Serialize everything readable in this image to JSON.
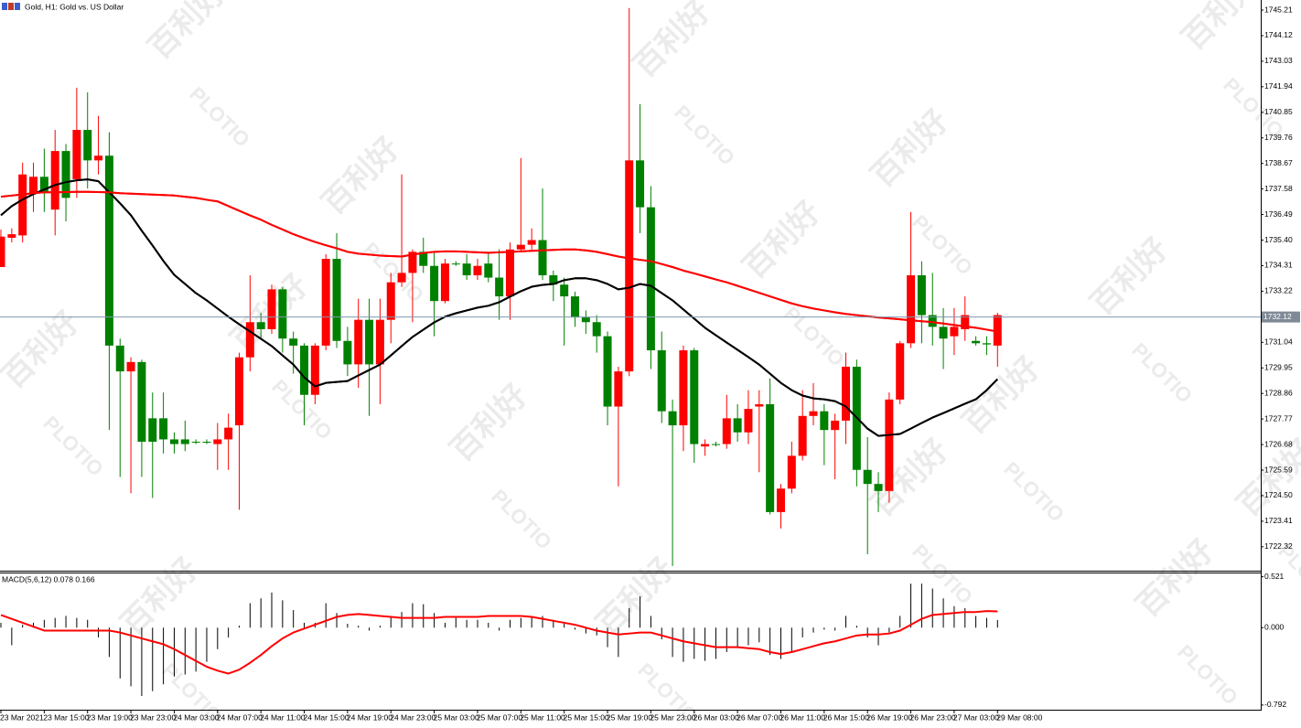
{
  "chart_data": [
    {
      "type": "candlestick",
      "title": "Gold, H1:  Gold vs. US Dollar",
      "watermark": {
        "brand": "PLOTIO",
        "text": "百利好"
      },
      "up_color": "#ff0000",
      "down_color": "#008000",
      "categories": [
        "23 Mar 2021",
        null,
        null,
        null,
        "23 Mar 15:00",
        null,
        null,
        null,
        "23 Mar 19:00",
        null,
        null,
        null,
        "23 Mar 23:00",
        null,
        null,
        null,
        "24 Mar 03:00",
        null,
        null,
        null,
        "24 Mar 07:00",
        null,
        null,
        null,
        "24 Mar 11:00",
        null,
        null,
        null,
        "24 Mar 15:00",
        null,
        null,
        null,
        "24 Mar 19:00",
        null,
        null,
        null,
        "24 Mar 23:00",
        null,
        null,
        null,
        "25 Mar 03:00",
        null,
        null,
        null,
        "25 Mar 07:00",
        null,
        null,
        null,
        "25 Mar 11:00",
        null,
        null,
        null,
        "25 Mar 15:00",
        null,
        null,
        null,
        "25 Mar 19:00",
        null,
        null,
        null,
        "25 Mar 23:00",
        null,
        null,
        null,
        "26 Mar 03:00",
        null,
        null,
        null,
        "26 Mar 07:00",
        null,
        null,
        null,
        "26 Mar 11:00",
        null,
        null,
        null,
        "26 Mar 15:00",
        null,
        null,
        null,
        "26 Mar 19:00",
        null,
        null,
        null,
        "26 Mar 23:00",
        null,
        null,
        null,
        "27 Mar 03:00",
        null,
        null,
        null,
        "29 Mar 08:00"
      ],
      "open": [
        1734.25,
        1735.5,
        1735.6,
        1737.4,
        1738.1,
        1736.7,
        1739.2,
        1738.0,
        1740.1,
        1738.8,
        1739.0,
        1730.9,
        1729.8,
        1730.2,
        1727.8,
        1727.8,
        1726.9,
        1726.9,
        1726.8,
        1726.8,
        1726.7,
        1726.9,
        1727.5,
        1730.4,
        1731.9,
        1731.6,
        1733.3,
        1731.2,
        1730.9,
        1728.8,
        1730.9,
        1734.6,
        1731.1,
        1730.1,
        1732.0,
        1730.1,
        1732.0,
        1733.6,
        1734.0,
        1734.9,
        1734.3,
        1732.8,
        1734.4,
        1734.4,
        1733.9,
        1734.4,
        1733.8,
        1733.0,
        1735.0,
        1735.2,
        1735.4,
        1733.9,
        1733.5,
        1733.0,
        1732.1,
        1731.9,
        1731.3,
        1728.3,
        1729.8,
        1738.8,
        1736.8,
        1730.7,
        1728.1,
        1727.5,
        1730.7,
        1726.6,
        1726.7,
        1726.7,
        1727.8,
        1727.2,
        1728.3,
        1728.4,
        1723.8,
        1724.8,
        1726.2,
        1727.9,
        1728.1,
        1727.3,
        1727.7,
        1730.0,
        1725.6,
        1725.0,
        1724.7,
        1728.6,
        1731.0,
        1733.9,
        1732.2,
        1731.7,
        1731.3,
        1731.6,
        1731.1,
        1731.0,
        1730.9
      ],
      "high": [
        1735.85,
        1735.9,
        1738.7,
        1738.7,
        1739.3,
        1740.1,
        1739.5,
        1741.9,
        1741.7,
        1740.7,
        1740.0,
        1731.2,
        1730.4,
        1730.3,
        1728.9,
        1728.9,
        1727.2,
        1727.7,
        1726.9,
        1726.9,
        1727.6,
        1728.0,
        1730.6,
        1733.9,
        1732.3,
        1733.5,
        1733.4,
        1731.5,
        1731.0,
        1731.0,
        1734.8,
        1735.7,
        1731.7,
        1732.9,
        1732.9,
        1732.9,
        1734.0,
        1738.2,
        1735.0,
        1735.5,
        1734.9,
        1734.6,
        1734.5,
        1734.8,
        1734.6,
        1734.9,
        1735.0,
        1735.3,
        1738.9,
        1735.9,
        1737.6,
        1734.1,
        1733.8,
        1733.2,
        1732.4,
        1732.2,
        1731.5,
        1730.0,
        1745.3,
        1741.2,
        1737.7,
        1731.5,
        1728.6,
        1730.9,
        1730.8,
        1726.9,
        1726.8,
        1728.8,
        1728.4,
        1729.0,
        1729.0,
        1729.5,
        1725.0,
        1726.8,
        1729.0,
        1729.3,
        1728.4,
        1728.0,
        1730.6,
        1730.3,
        1727.0,
        1725.5,
        1728.9,
        1731.1,
        1736.6,
        1734.5,
        1734.0,
        1732.5,
        1732.5,
        1733.0,
        1731.3,
        1731.3,
        1732.3
      ],
      "low": [
        1734.25,
        1735.3,
        1735.3,
        1736.6,
        1736.6,
        1735.6,
        1736.2,
        1737.2,
        1737.6,
        1738.2,
        1727.3,
        1725.3,
        1724.6,
        1725.3,
        1724.4,
        1726.3,
        1726.3,
        1726.4,
        1726.7,
        1726.7,
        1725.6,
        1725.6,
        1723.9,
        1729.8,
        1731.2,
        1731.4,
        1730.6,
        1729.7,
        1727.5,
        1728.4,
        1730.7,
        1730.8,
        1729.6,
        1729.1,
        1727.9,
        1728.4,
        1731.0,
        1733.4,
        1731.9,
        1734.0,
        1731.3,
        1732.7,
        1734.3,
        1733.7,
        1733.7,
        1733.6,
        1732.0,
        1732.0,
        1734.9,
        1735.0,
        1733.7,
        1732.8,
        1730.9,
        1731.7,
        1731.4,
        1730.6,
        1727.5,
        1724.9,
        1729.6,
        1735.7,
        1729.9,
        1727.6,
        1721.5,
        1726.4,
        1725.9,
        1726.2,
        1726.6,
        1726.5,
        1726.8,
        1726.7,
        1725.5,
        1723.7,
        1723.1,
        1724.6,
        1726.0,
        1727.5,
        1725.8,
        1725.2,
        1726.7,
        1724.9,
        1722.0,
        1723.8,
        1724.2,
        1728.4,
        1730.8,
        1731.0,
        1730.9,
        1729.9,
        1730.5,
        1731.1,
        1730.9,
        1730.5,
        1730.0
      ],
      "close": [
        1735.55,
        1735.65,
        1738.2,
        1738.1,
        1737.4,
        1739.2,
        1737.2,
        1740.1,
        1738.8,
        1739.0,
        1730.9,
        1729.8,
        1730.2,
        1726.8,
        1726.8,
        1726.9,
        1726.7,
        1726.7,
        1726.8,
        1726.8,
        1726.9,
        1727.4,
        1730.4,
        1731.9,
        1731.6,
        1733.3,
        1731.2,
        1730.9,
        1728.8,
        1730.9,
        1734.6,
        1731.1,
        1730.1,
        1732.0,
        1730.1,
        1732.0,
        1733.6,
        1734.0,
        1734.9,
        1734.3,
        1732.8,
        1734.4,
        1734.4,
        1733.9,
        1734.3,
        1733.8,
        1733.0,
        1735.0,
        1735.2,
        1735.4,
        1733.9,
        1733.5,
        1733.0,
        1732.1,
        1731.9,
        1731.3,
        1728.3,
        1729.8,
        1738.8,
        1736.8,
        1730.7,
        1728.1,
        1727.5,
        1730.7,
        1726.7,
        1726.7,
        1726.7,
        1727.8,
        1727.2,
        1728.2,
        1728.4,
        1723.8,
        1724.8,
        1726.2,
        1727.9,
        1728.1,
        1727.3,
        1727.7,
        1730.0,
        1725.6,
        1725.0,
        1724.7,
        1728.6,
        1731.0,
        1733.9,
        1732.2,
        1731.7,
        1731.2,
        1731.7,
        1732.2,
        1731.0,
        1730.95,
        1732.2
      ],
      "series": [
        {
          "color": "#000000",
          "values": [
            1736.46,
            1736.85,
            1737.13,
            1737.36,
            1737.56,
            1737.75,
            1737.87,
            1737.95,
            1737.99,
            1737.91,
            1737.44,
            1736.97,
            1736.46,
            1735.8,
            1735.17,
            1734.51,
            1733.92,
            1733.53,
            1733.14,
            1732.83,
            1732.48,
            1732.13,
            1731.81,
            1731.5,
            1731.19,
            1730.88,
            1730.48,
            1730.09,
            1729.55,
            1729.16,
            1729.31,
            1729.35,
            1729.39,
            1729.63,
            1729.86,
            1730.09,
            1730.48,
            1730.88,
            1731.27,
            1731.58,
            1731.89,
            1732.13,
            1732.28,
            1732.4,
            1732.52,
            1732.6,
            1732.75,
            1732.99,
            1733.22,
            1733.41,
            1733.49,
            1733.53,
            1733.69,
            1733.77,
            1733.77,
            1733.69,
            1733.53,
            1733.3,
            1733.37,
            1733.53,
            1733.45,
            1733.14,
            1732.83,
            1732.44,
            1732.05,
            1731.66,
            1731.34,
            1731.03,
            1730.72,
            1730.41,
            1730.09,
            1729.7,
            1729.31,
            1729.0,
            1728.77,
            1728.65,
            1728.61,
            1728.53,
            1728.3,
            1727.83,
            1727.36,
            1727.05,
            1727.09,
            1727.13,
            1727.36,
            1727.6,
            1727.83,
            1728.02,
            1728.22,
            1728.42,
            1728.61,
            1729.0,
            1729.47
          ]
        },
        {
          "color": "#ff0000",
          "values": [
            1737.25,
            1737.3,
            1737.35,
            1737.4,
            1737.44,
            1737.44,
            1737.45,
            1737.46,
            1737.46,
            1737.45,
            1737.44,
            1737.4,
            1737.38,
            1737.36,
            1737.34,
            1737.32,
            1737.3,
            1737.25,
            1737.2,
            1737.12,
            1737.05,
            1736.85,
            1736.65,
            1736.45,
            1736.27,
            1736.05,
            1735.85,
            1735.65,
            1735.48,
            1735.32,
            1735.18,
            1735.05,
            1734.9,
            1734.82,
            1734.78,
            1734.74,
            1734.72,
            1734.7,
            1734.78,
            1734.85,
            1734.9,
            1734.92,
            1734.92,
            1734.9,
            1734.88,
            1734.86,
            1734.88,
            1734.9,
            1734.92,
            1734.94,
            1734.96,
            1734.98,
            1735.0,
            1735.0,
            1734.96,
            1734.9,
            1734.8,
            1734.7,
            1734.62,
            1734.56,
            1734.5,
            1734.38,
            1734.25,
            1734.1,
            1733.98,
            1733.85,
            1733.72,
            1733.6,
            1733.45,
            1733.3,
            1733.15,
            1733.0,
            1732.85,
            1732.7,
            1732.58,
            1732.48,
            1732.4,
            1732.32,
            1732.25,
            1732.2,
            1732.15,
            1732.1,
            1732.06,
            1732.02,
            1731.98,
            1731.94,
            1731.9,
            1731.84,
            1731.78,
            1731.72,
            1731.66,
            1731.58,
            1731.5
          ]
        }
      ],
      "current_price": 1732.12,
      "ylim": [
        1721.3,
        1745.64
      ],
      "yticks": [
        1745.21,
        1744.12,
        1743.03,
        1741.94,
        1740.85,
        1739.76,
        1738.67,
        1737.58,
        1736.49,
        {
          "value": 1735.4,
          "label": "1735.40"
        },
        1734.31,
        1733.22,
        1731.04,
        1729.95,
        1728.86,
        1727.77,
        1726.68,
        1725.59,
        {
          "value": 1724.5,
          "label": "1724.50"
        },
        1723.41,
        1722.32
      ]
    },
    {
      "type": "macd",
      "title": "MACD(5,6,12) 0.078 0.166",
      "color": "#000000",
      "values": [
        0.05,
        -0.18,
        0.03,
        0.05,
        0.08,
        0.1,
        0.12,
        0.1,
        0.08,
        -0.1,
        -0.3,
        -0.52,
        -0.6,
        -0.7,
        -0.65,
        -0.58,
        -0.5,
        -0.48,
        -0.45,
        -0.35,
        -0.22,
        -0.1,
        0.02,
        0.25,
        0.3,
        0.36,
        0.28,
        0.18,
        0.05,
        0.05,
        0.25,
        0.15,
        0.04,
        0.02,
        -0.03,
        0.02,
        0.12,
        0.16,
        0.25,
        0.24,
        0.15,
        0.05,
        0.1,
        0.08,
        0.08,
        0.05,
        -0.03,
        0.08,
        0.1,
        0.12,
        0.12,
        0.08,
        0.04,
        -0.02,
        -0.06,
        -0.08,
        -0.2,
        -0.3,
        0.2,
        0.32,
        0.12,
        -0.12,
        -0.3,
        -0.35,
        -0.32,
        -0.34,
        -0.32,
        -0.25,
        -0.2,
        -0.18,
        -0.15,
        -0.28,
        -0.32,
        -0.25,
        -0.1,
        -0.05,
        -0.02,
        -0.03,
        0.12,
        0.02,
        -0.1,
        -0.18,
        -0.05,
        0.12,
        0.45,
        0.45,
        0.4,
        0.3,
        0.22,
        0.2,
        0.12,
        0.1,
        0.078
      ],
      "series": [
        {
          "color": "#ff0000",
          "values": [
            0.13,
            0.09,
            0.05,
            0.01,
            -0.03,
            -0.03,
            -0.03,
            -0.03,
            -0.03,
            -0.03,
            -0.03,
            -0.05,
            -0.08,
            -0.11,
            -0.14,
            -0.17,
            -0.22,
            -0.28,
            -0.34,
            -0.4,
            -0.44,
            -0.47,
            -0.43,
            -0.36,
            -0.28,
            -0.19,
            -0.11,
            -0.05,
            -0.01,
            0.03,
            0.07,
            0.11,
            0.13,
            0.14,
            0.13,
            0.12,
            0.11,
            0.1,
            0.1,
            0.1,
            0.1,
            0.11,
            0.11,
            0.11,
            0.11,
            0.12,
            0.12,
            0.12,
            0.12,
            0.11,
            0.09,
            0.07,
            0.05,
            0.03,
            0,
            -0.03,
            -0.05,
            -0.07,
            -0.06,
            -0.05,
            -0.05,
            -0.08,
            -0.11,
            -0.14,
            -0.16,
            -0.18,
            -0.2,
            -0.2,
            -0.2,
            -0.21,
            -0.22,
            -0.25,
            -0.27,
            -0.25,
            -0.22,
            -0.19,
            -0.16,
            -0.14,
            -0.11,
            -0.08,
            -0.07,
            -0.07,
            -0.06,
            -0.03,
            0.03,
            0.09,
            0.13,
            0.14,
            0.15,
            0.16,
            0.16,
            0.17,
            0.166
          ]
        }
      ],
      "ylim": [
        -0.84,
        0.555
      ],
      "yticks": [
        0.521,
        {
          "value": 0,
          "label": "0.000"
        },
        -0.792
      ]
    }
  ]
}
